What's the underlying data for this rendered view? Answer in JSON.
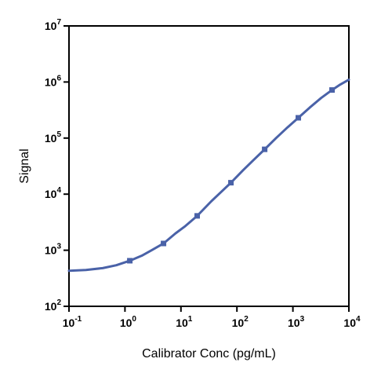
{
  "chart_data": {
    "type": "line",
    "title": "",
    "xlabel": "Calibrator Conc (pg/mL)",
    "ylabel": "Signal",
    "x_scale": "log",
    "y_scale": "log",
    "xlim": [
      0.1,
      10000
    ],
    "ylim": [
      100,
      10000000
    ],
    "grid": false,
    "legend": "none",
    "x_ticks": [
      {
        "base": "10",
        "exp": "-1",
        "value": 0.1
      },
      {
        "base": "10",
        "exp": "0",
        "value": 1
      },
      {
        "base": "10",
        "exp": "1",
        "value": 10
      },
      {
        "base": "10",
        "exp": "2",
        "value": 100
      },
      {
        "base": "10",
        "exp": "3",
        "value": 1000
      },
      {
        "base": "10",
        "exp": "4",
        "value": 10000
      }
    ],
    "y_ticks": [
      {
        "base": "10",
        "exp": "2",
        "value": 100
      },
      {
        "base": "10",
        "exp": "3",
        "value": 1000
      },
      {
        "base": "10",
        "exp": "4",
        "value": 10000
      },
      {
        "base": "10",
        "exp": "5",
        "value": 100000
      },
      {
        "base": "10",
        "exp": "6",
        "value": 1000000
      },
      {
        "base": "10",
        "exp": "7",
        "value": 10000000
      }
    ],
    "series": [
      {
        "color": "#4a62a8",
        "marker": "square",
        "points": [
          {
            "x": 1.22,
            "y": 650
          },
          {
            "x": 4.88,
            "y": 1320
          },
          {
            "x": 19.5,
            "y": 4100
          },
          {
            "x": 78.1,
            "y": 16000
          },
          {
            "x": 313,
            "y": 63000
          },
          {
            "x": 1250,
            "y": 230000
          },
          {
            "x": 5000,
            "y": 720000
          }
        ],
        "curve": [
          {
            "x": 0.1,
            "y": 430
          },
          {
            "x": 0.2,
            "y": 445
          },
          {
            "x": 0.4,
            "y": 480
          },
          {
            "x": 0.7,
            "y": 540
          },
          {
            "x": 1.22,
            "y": 650
          },
          {
            "x": 2.0,
            "y": 800
          },
          {
            "x": 3.0,
            "y": 1000
          },
          {
            "x": 4.88,
            "y": 1320
          },
          {
            "x": 8.0,
            "y": 2000
          },
          {
            "x": 12.0,
            "y": 2700
          },
          {
            "x": 19.5,
            "y": 4100
          },
          {
            "x": 35,
            "y": 7500
          },
          {
            "x": 50,
            "y": 10500
          },
          {
            "x": 78.1,
            "y": 16000
          },
          {
            "x": 130,
            "y": 27000
          },
          {
            "x": 200,
            "y": 41000
          },
          {
            "x": 313,
            "y": 63000
          },
          {
            "x": 500,
            "y": 100000
          },
          {
            "x": 800,
            "y": 155000
          },
          {
            "x": 1250,
            "y": 230000
          },
          {
            "x": 2000,
            "y": 350000
          },
          {
            "x": 3200,
            "y": 520000
          },
          {
            "x": 5000,
            "y": 720000
          },
          {
            "x": 7000,
            "y": 900000
          },
          {
            "x": 10000,
            "y": 1100000
          }
        ]
      }
    ]
  }
}
